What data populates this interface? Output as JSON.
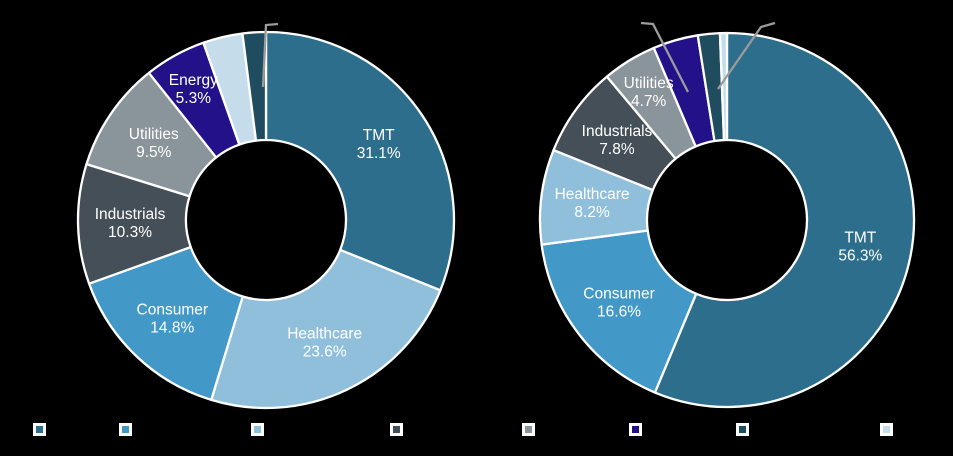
{
  "page": {
    "background_color": "#000000",
    "separator_color": "#ffffff",
    "callout_line_color": "#9b9b9b",
    "label_text_color": "#ffffff"
  },
  "chart_data": [
    {
      "type": "pie",
      "subtype": "donut",
      "name": "left-donut",
      "title": "",
      "unit": "%",
      "start_angle_deg": 0,
      "direction": "clockwise",
      "slices": [
        {
          "label": "TMT",
          "value": 31.1,
          "color": "#2E6E8D",
          "label_visible": true,
          "callout": false
        },
        {
          "label": "Healthcare",
          "value": 23.6,
          "color": "#90BFDC",
          "label_visible": true,
          "callout": false
        },
        {
          "label": "Consumer",
          "value": 14.8,
          "color": "#4298C6",
          "label_visible": true,
          "callout": false
        },
        {
          "label": "Industrials",
          "value": 10.3,
          "color": "#454F57",
          "label_visible": true,
          "callout": false
        },
        {
          "label": "Utilities",
          "value": 9.5,
          "color": "#8A949B",
          "label_visible": true,
          "callout": false
        },
        {
          "label": "Energy",
          "value": 5.3,
          "color": "#221189",
          "label_visible": true,
          "callout": false
        },
        {
          "label": "",
          "value": 3.4,
          "color": "#C5DDEB",
          "label_visible": false,
          "callout": false
        },
        {
          "label": "",
          "value": 2.0,
          "color": "#1F4C5E",
          "label_visible": false,
          "callout": true
        }
      ]
    },
    {
      "type": "pie",
      "subtype": "donut",
      "name": "right-donut",
      "title": "",
      "unit": "%",
      "start_angle_deg": 0,
      "direction": "clockwise",
      "slices": [
        {
          "label": "TMT",
          "value": 56.3,
          "color": "#2E6E8D",
          "label_visible": true,
          "callout": false
        },
        {
          "label": "Consumer",
          "value": 16.6,
          "color": "#4298C6",
          "label_visible": true,
          "callout": false
        },
        {
          "label": "Healthcare",
          "value": 8.2,
          "color": "#90BFDC",
          "label_visible": true,
          "callout": false
        },
        {
          "label": "Industrials",
          "value": 7.8,
          "color": "#454F57",
          "label_visible": true,
          "callout": false
        },
        {
          "label": "Utilities",
          "value": 4.7,
          "color": "#8A949B",
          "label_visible": true,
          "callout": false
        },
        {
          "label": "",
          "value": 3.9,
          "color": "#221189",
          "label_visible": false,
          "callout": true
        },
        {
          "label": "",
          "value": 1.9,
          "color": "#1F4C5E",
          "label_visible": false,
          "callout": false
        },
        {
          "label": "",
          "value": 0.6,
          "color": "#C5DDEB",
          "label_visible": false,
          "callout": true
        }
      ]
    }
  ],
  "legend": {
    "position": "bottom",
    "labels_visible": false,
    "swatches": [
      {
        "name": "tmt",
        "color": "#2E6E8D"
      },
      {
        "name": "consumer",
        "color": "#4298C6"
      },
      {
        "name": "healthcare",
        "color": "#90BFDC"
      },
      {
        "name": "industrials",
        "color": "#454F57"
      },
      {
        "name": "utilities",
        "color": "#8A949B"
      },
      {
        "name": "energy",
        "color": "#221189"
      },
      {
        "name": "other-1",
        "color": "#1F4C5E"
      },
      {
        "name": "other-2",
        "color": "#C5DDEB"
      }
    ]
  }
}
